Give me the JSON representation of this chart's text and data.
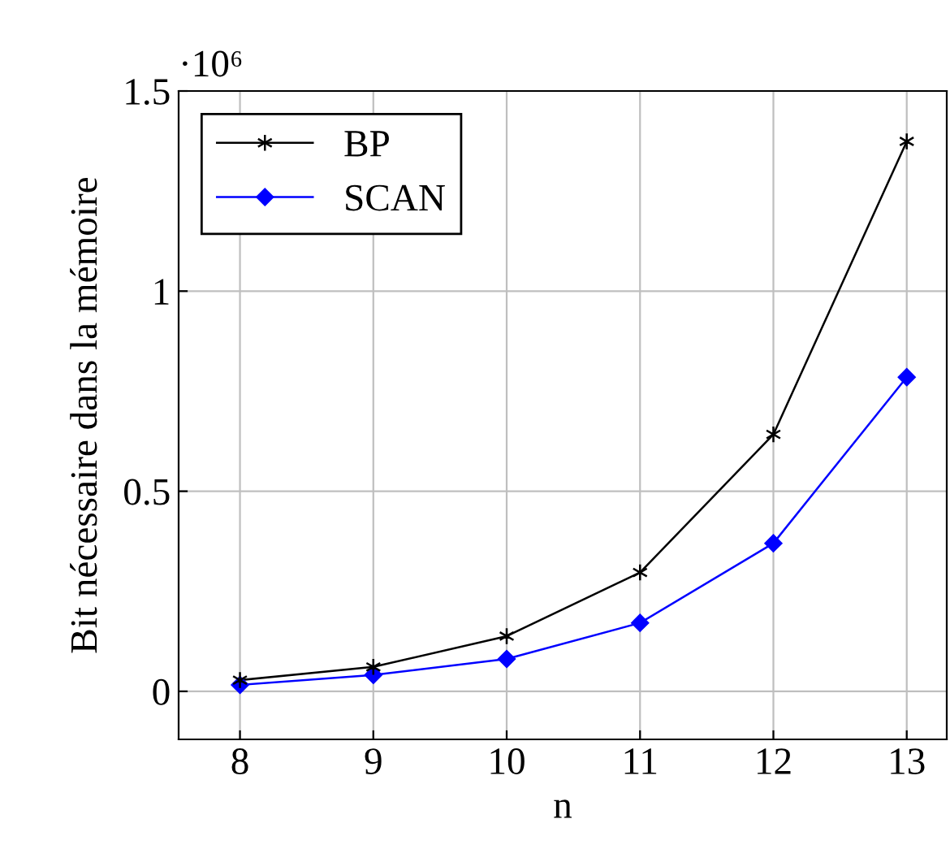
{
  "chart_data": {
    "type": "line",
    "xlabel": "n",
    "ylabel": "Bit nécessaire dans la mémoire",
    "x": [
      8,
      9,
      10,
      11,
      12,
      13
    ],
    "series": [
      {
        "name": "BP",
        "color": "#000000",
        "marker": "cross",
        "values": [
          0.028,
          0.061,
          0.138,
          0.297,
          0.642,
          1.374
        ]
      },
      {
        "name": "SCAN",
        "color": "#0000ff",
        "marker": "diamond",
        "values": [
          0.016,
          0.041,
          0.081,
          0.171,
          0.37,
          0.785
        ]
      }
    ],
    "xlim": [
      7.54,
      13.3
    ],
    "ylim": [
      -0.12,
      1.5
    ],
    "xticks": [
      8,
      9,
      10,
      11,
      12,
      13
    ],
    "yticks": [
      0,
      0.5,
      1,
      1.5
    ],
    "annotations": [
      "·10⁶"
    ],
    "grid": true,
    "legend": "top left",
    "line_style": "solid"
  }
}
